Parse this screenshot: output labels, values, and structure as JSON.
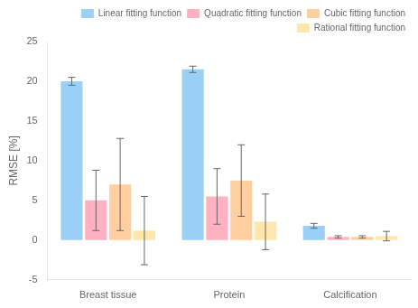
{
  "chart_data": {
    "type": "bar",
    "categories": [
      "Breast tissue",
      "Protein",
      "Calcification"
    ],
    "series": [
      {
        "name": "Linear fitting function",
        "values": [
          20.0,
          21.5,
          1.8
        ],
        "errors": [
          0.5,
          0.4,
          0.3
        ]
      },
      {
        "name": "Quadratic fitting function",
        "values": [
          5.0,
          5.5,
          0.4
        ],
        "errors": [
          3.8,
          3.5,
          0.15
        ]
      },
      {
        "name": "Cubic fitting function",
        "values": [
          7.0,
          7.5,
          0.4
        ],
        "errors": [
          5.8,
          4.5,
          0.15
        ]
      },
      {
        "name": "Rational fitting function",
        "values": [
          1.2,
          2.3,
          0.5
        ],
        "errors": [
          4.3,
          3.5,
          0.6
        ]
      }
    ],
    "ylabel": "RMSE [%]",
    "ylim": [
      -5,
      25
    ],
    "yticks": [
      -5,
      0,
      5,
      10,
      15,
      20,
      25
    ],
    "grid": false,
    "legend": "upper right"
  }
}
